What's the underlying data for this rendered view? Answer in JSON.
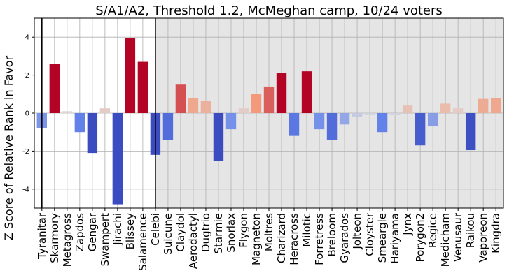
{
  "chart_data": {
    "type": "bar",
    "title": "S/A1/A2, Threshold 1.2, McMeghan camp, 10/24 voters",
    "xlabel": "",
    "ylabel": "Z Score of Relative Rank in Favor",
    "ylim": [
      -5,
      5
    ],
    "yticks": [
      -4,
      -2,
      0,
      2,
      4
    ],
    "grid": true,
    "categories": [
      "Tyranitar",
      "Skarmory",
      "Metagross",
      "Zapdos",
      "Gengar",
      "Swampert",
      "Jirachi",
      "Blissey",
      "Salamence",
      "Celebi",
      "Suicune",
      "Claydol",
      "Aerodactyl",
      "Dugtrio",
      "Starmie",
      "Snorlax",
      "Flygon",
      "Magneton",
      "Moltres",
      "Charizard",
      "Heracross",
      "Milotic",
      "Forretress",
      "Breloom",
      "Gyarados",
      "Jolteon",
      "Cloyster",
      "Smeargle",
      "Hariyama",
      "Jynx",
      "Porygon2",
      "Regice",
      "Medicham",
      "Venusaur",
      "Raikou",
      "Vaporeon",
      "Kingdra"
    ],
    "values": [
      -0.8,
      2.6,
      0.1,
      -1.0,
      -2.1,
      0.25,
      -4.8,
      3.95,
      2.7,
      -2.2,
      -1.4,
      1.5,
      0.8,
      0.65,
      -2.5,
      -0.85,
      0.25,
      1.0,
      1.4,
      2.1,
      -1.2,
      2.2,
      -0.85,
      -1.4,
      -0.6,
      -0.2,
      -0.1,
      -1.0,
      -0.1,
      0.4,
      -1.7,
      -0.7,
      0.5,
      0.25,
      -1.95,
      0.75,
      0.8
    ],
    "shaded_region": {
      "from_category": "Celebi",
      "to_category": "Kingdra"
    },
    "vertical_lines_at": [
      "Tyranitar",
      "Celebi"
    ]
  }
}
